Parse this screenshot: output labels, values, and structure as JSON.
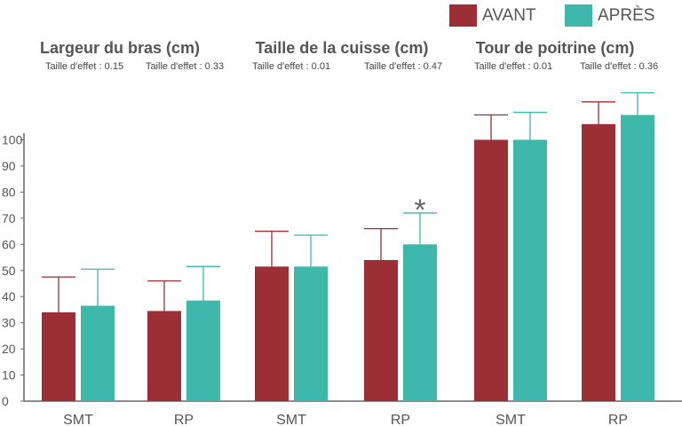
{
  "colors": {
    "avant": "#9b2f35",
    "apres": "#3db8aa",
    "axis": "#666666",
    "text": "#555555"
  },
  "legend": [
    {
      "label": "AVANT",
      "color": "#9b2f35"
    },
    {
      "label": "APRÈS",
      "color": "#3db8aa"
    }
  ],
  "panels": [
    {
      "title": "Largeur du bras (cm)",
      "effects": [
        "Taille d'effet : 0.15",
        "Taille d'effet : 0.33"
      ]
    },
    {
      "title": "Taille de la cuisse (cm)",
      "effects": [
        "Taille d'effet : 0.01",
        "Taille d'effet : 0.47"
      ]
    },
    {
      "title": "Tour de poitrine (cm)",
      "effects": [
        "Taille d'effet : 0.01",
        "Taille d'effet : 0.36"
      ]
    }
  ],
  "chart_data": {
    "type": "bar",
    "categories": [
      "SMT",
      "RP",
      "SMT",
      "RP",
      "SMT",
      "RP"
    ],
    "series": [
      {
        "name": "AVANT",
        "values": [
          34,
          34.5,
          51.5,
          54,
          100,
          106
        ],
        "errors": [
          13.5,
          11.5,
          13.5,
          12,
          9.5,
          8.5
        ]
      },
      {
        "name": "APRÈS",
        "values": [
          36.5,
          38.5,
          51.5,
          60,
          100,
          109.5
        ],
        "errors": [
          14,
          13,
          12,
          12,
          10.5,
          8.5
        ]
      }
    ],
    "significance": [
      {
        "category_index": 3,
        "series": "APRÈS",
        "marker": "*"
      }
    ],
    "ylim": [
      0,
      105
    ],
    "yticks": [
      0,
      10,
      20,
      30,
      40,
      50,
      60,
      70,
      80,
      90,
      100
    ],
    "grid": false,
    "legend_position": "top-right",
    "xlabel": "",
    "ylabel": ""
  }
}
